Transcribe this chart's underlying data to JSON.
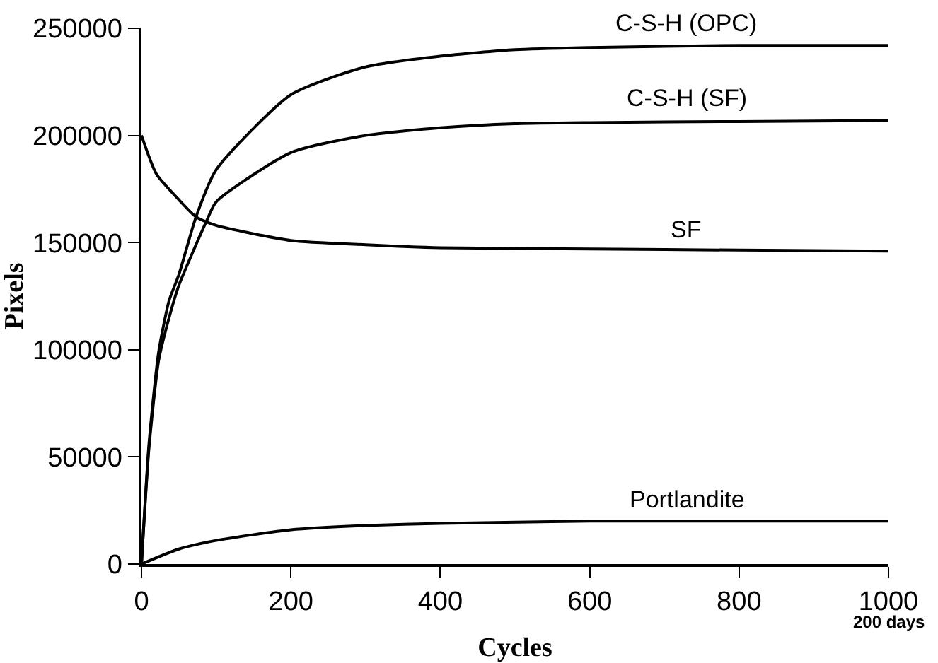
{
  "chart_data": {
    "type": "line",
    "xlabel": "Cycles",
    "ylabel": "Pixels",
    "xlim": [
      0,
      1000
    ],
    "xticks": [
      0,
      200,
      400,
      600,
      800,
      1000
    ],
    "ylim": [
      0,
      250000
    ],
    "yticks": [
      0,
      50000,
      100000,
      150000,
      200000,
      250000
    ],
    "grid": false,
    "legend": false,
    "marker": "none",
    "line_style": "solid",
    "annotations": [
      "200 days"
    ],
    "series": [
      {
        "name": "C-S-H (OPC)",
        "color": "#000000",
        "x": [
          0,
          10,
          23,
          37,
          50,
          73,
          100,
          200,
          300,
          400,
          500,
          600,
          800,
          1000
        ],
        "values": [
          0,
          56000,
          99000,
          123000,
          135000,
          162000,
          184000,
          219000,
          232000,
          237000,
          240000,
          241000,
          242000,
          242000
        ]
      },
      {
        "name": "C-S-H (SF)",
        "color": "#000000",
        "x": [
          0,
          10,
          23,
          37,
          50,
          87,
          100,
          200,
          300,
          400,
          500,
          600,
          800,
          1000
        ],
        "values": [
          0,
          54000,
          95000,
          115000,
          130000,
          160000,
          169000,
          192000,
          200000,
          203600,
          205500,
          206000,
          206500,
          207000
        ]
      },
      {
        "name": "SF",
        "color": "#000000",
        "x": [
          0,
          20,
          50,
          73,
          100,
          200,
          300,
          400,
          600,
          800,
          1000
        ],
        "values": [
          200000,
          182000,
          170000,
          162000,
          158000,
          151000,
          149000,
          147600,
          147000,
          146500,
          146000
        ]
      },
      {
        "name": "Portlandite",
        "color": "#000000",
        "x": [
          0,
          50,
          100,
          200,
          300,
          400,
          600,
          800,
          1000
        ],
        "values": [
          0,
          7000,
          11000,
          16000,
          18000,
          19000,
          20000,
          20000,
          20000
        ]
      }
    ]
  }
}
